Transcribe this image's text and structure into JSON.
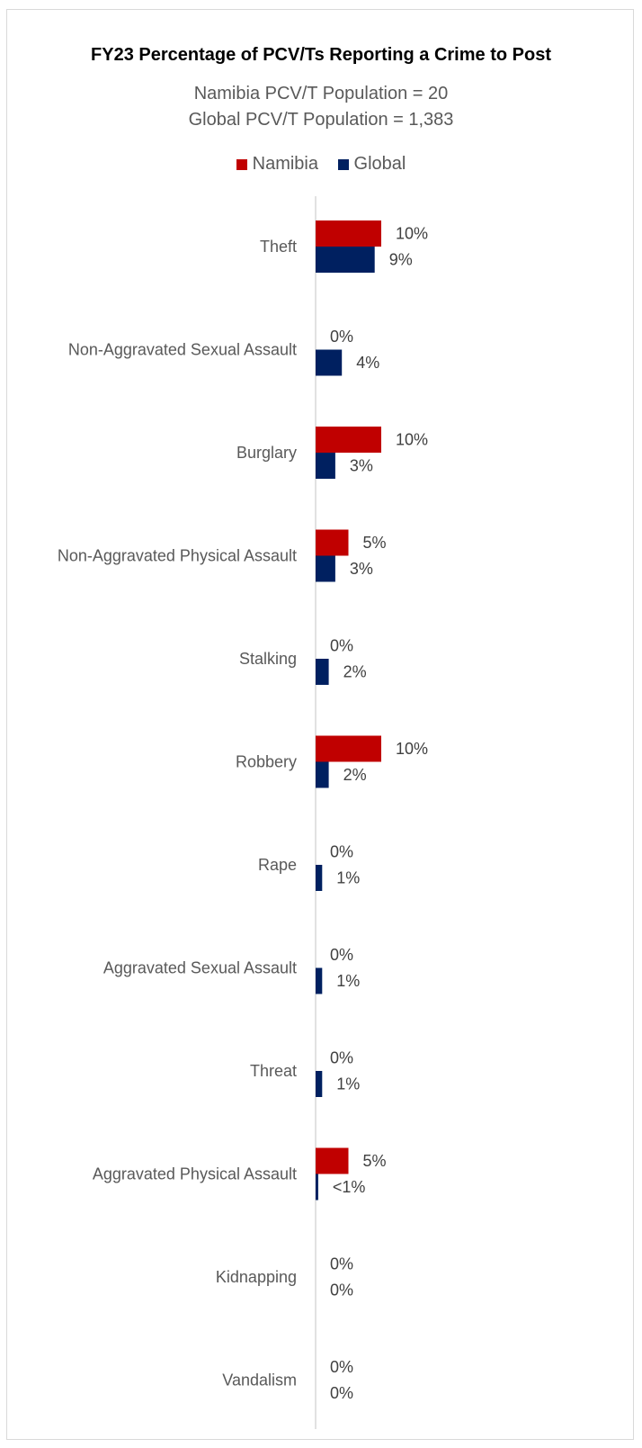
{
  "chart_data": {
    "type": "bar",
    "orientation": "horizontal",
    "title": "FY23 Percentage of PCV/Ts Reporting a Crime to Post",
    "subtitle_lines": [
      "Namibia PCV/T Population = 20",
      "Global PCV/T Population = 1,383"
    ],
    "categories": [
      "Theft",
      "Non-Aggravated Sexual Assault",
      "Burglary",
      "Non-Aggravated Physical Assault",
      "Stalking",
      "Robbery",
      "Rape",
      "Aggravated Sexual Assault",
      "Threat",
      "Aggravated Physical Assault",
      "Kidnapping",
      "Vandalism"
    ],
    "series": [
      {
        "name": "Namibia",
        "color": "#c00000",
        "values": [
          10,
          0,
          10,
          5,
          0,
          10,
          0,
          0,
          0,
          5,
          0,
          0
        ],
        "labels": [
          "10%",
          "0%",
          "10%",
          "5%",
          "0%",
          "10%",
          "0%",
          "0%",
          "0%",
          "5%",
          "0%",
          "0%"
        ]
      },
      {
        "name": "Global",
        "color": "#002060",
        "values": [
          9,
          4,
          3,
          3,
          2,
          2,
          1,
          1,
          1,
          0.4,
          0,
          0
        ],
        "labels": [
          "9%",
          "4%",
          "3%",
          "3%",
          "2%",
          "2%",
          "1%",
          "1%",
          "1%",
          "<1%",
          "0%",
          "0%"
        ]
      }
    ],
    "xlim": [
      0,
      10
    ],
    "legend_position": "top",
    "grid": false
  }
}
